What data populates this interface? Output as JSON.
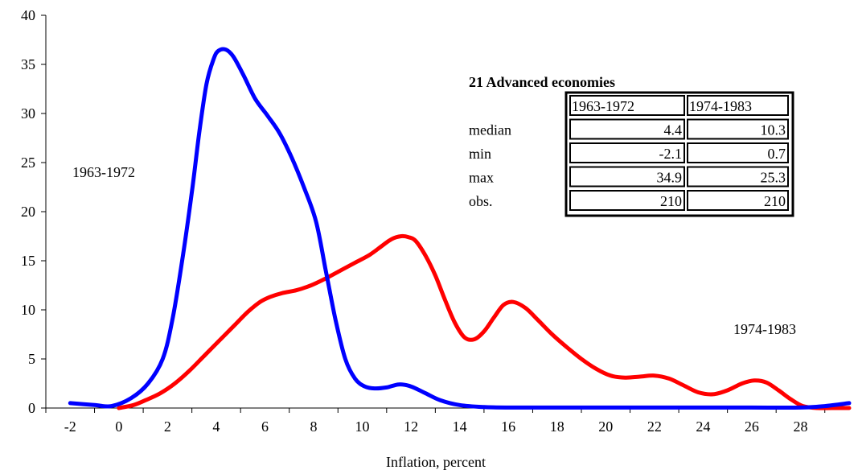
{
  "chart_data": {
    "type": "line",
    "xlabel": "Inflation, percent",
    "ylabel": "",
    "x_ticks": [
      "-2",
      "0",
      "2",
      "4",
      "6",
      "8",
      "10",
      "12",
      "14",
      "16",
      "18",
      "20",
      "22",
      "24",
      "26",
      "28"
    ],
    "y_ticks": [
      "0",
      "5",
      "10",
      "15",
      "20",
      "25",
      "30",
      "35",
      "40"
    ],
    "xlim": [
      -3,
      30
    ],
    "ylim": [
      0,
      40
    ],
    "grid": false,
    "series": [
      {
        "name": "1963-1972",
        "color": "#0000ff",
        "x": [
          -2.0,
          -1.0,
          -0.3,
          0.5,
          1.2,
          1.8,
          2.2,
          2.6,
          3.0,
          3.3,
          3.6,
          3.9,
          4.1,
          4.4,
          4.7,
          5.1,
          5.6,
          6.1,
          6.6,
          7.1,
          7.6,
          8.1,
          8.5,
          8.9,
          9.3,
          9.7,
          10.1,
          10.5,
          11.0,
          11.5,
          12.0,
          12.6,
          13.2,
          14.0,
          15.0,
          16.0,
          18.0,
          20.0,
          22.0,
          24.0,
          26.0,
          28.0,
          29.0,
          30.0
        ],
        "y": [
          0.5,
          0.3,
          0.2,
          1.0,
          2.5,
          5.0,
          9.0,
          15.0,
          22.0,
          28.0,
          33.0,
          35.6,
          36.4,
          36.5,
          35.8,
          34.0,
          31.5,
          29.8,
          28.0,
          25.5,
          22.5,
          19.0,
          14.0,
          9.0,
          5.0,
          3.0,
          2.2,
          2.0,
          2.1,
          2.4,
          2.2,
          1.5,
          0.8,
          0.3,
          0.1,
          0.05,
          0.05,
          0.05,
          0.05,
          0.05,
          0.05,
          0.05,
          0.2,
          0.5
        ]
      },
      {
        "name": "1974-1983",
        "color": "#ff0000",
        "x": [
          0.0,
          0.6,
          1.1,
          1.7,
          2.3,
          2.9,
          3.5,
          4.1,
          4.7,
          5.3,
          5.8,
          6.2,
          6.7,
          7.3,
          7.9,
          8.5,
          9.1,
          9.7,
          10.3,
          10.8,
          11.2,
          11.6,
          11.9,
          12.2,
          12.6,
          13.0,
          13.4,
          13.8,
          14.2,
          14.6,
          15.0,
          15.4,
          15.8,
          16.2,
          16.7,
          17.2,
          17.8,
          18.4,
          19.0,
          19.6,
          20.2,
          20.8,
          21.4,
          22.0,
          22.6,
          23.2,
          23.8,
          24.4,
          25.0,
          25.6,
          26.1,
          26.6,
          27.1,
          27.6,
          28.1,
          28.7,
          29.3,
          30.0
        ],
        "y": [
          0.0,
          0.3,
          0.8,
          1.5,
          2.5,
          3.8,
          5.3,
          6.8,
          8.3,
          9.8,
          10.8,
          11.3,
          11.7,
          12.0,
          12.5,
          13.2,
          14.0,
          14.8,
          15.6,
          16.5,
          17.2,
          17.5,
          17.4,
          17.0,
          15.5,
          13.5,
          11.0,
          8.7,
          7.2,
          7.0,
          7.8,
          9.2,
          10.5,
          10.8,
          10.2,
          9.0,
          7.5,
          6.2,
          5.0,
          4.0,
          3.3,
          3.1,
          3.2,
          3.3,
          3.0,
          2.3,
          1.6,
          1.4,
          1.8,
          2.5,
          2.8,
          2.6,
          1.8,
          0.9,
          0.2,
          0.0,
          0.0,
          0.0
        ]
      }
    ],
    "annotations": [
      {
        "text": "1963-1972",
        "series": 0
      },
      {
        "text": "1974-1983",
        "series": 1
      }
    ]
  },
  "stats_table": {
    "title": "21 Advanced economies",
    "columns": [
      "1963-1972",
      "1974-1983"
    ],
    "rows": [
      {
        "label": "median",
        "values": [
          "4.4",
          "10.3"
        ]
      },
      {
        "label": "min",
        "values": [
          "-2.1",
          "0.7"
        ]
      },
      {
        "label": "max",
        "values": [
          "34.9",
          "25.3"
        ]
      },
      {
        "label": "obs.",
        "values": [
          "210",
          "210"
        ]
      }
    ]
  }
}
